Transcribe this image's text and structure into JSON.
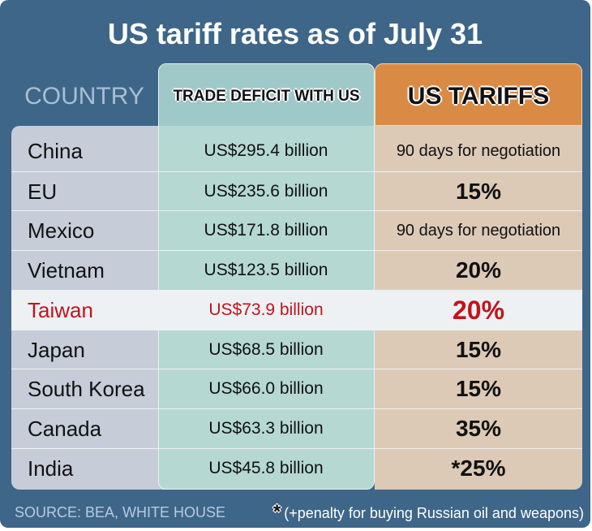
{
  "title": "US tariff rates as of July 31",
  "chart_data": {
    "type": "table",
    "title": "US tariff rates as of July 31",
    "columns": [
      "COUNTRY",
      "TRADE DEFICIT WITH US",
      "US TARIFFS"
    ],
    "rows": [
      {
        "country": "China",
        "deficit": "US$295.4 billion",
        "tariff": "90 days for negotiation"
      },
      {
        "country": "EU",
        "deficit": "US$235.6 billion",
        "tariff": "15%"
      },
      {
        "country": "Mexico",
        "deficit": "US$171.8 billion",
        "tariff": "90 days for negotiation"
      },
      {
        "country": "Vietnam",
        "deficit": "US$123.5 billion",
        "tariff": "20%"
      },
      {
        "country": "Taiwan",
        "deficit": "US$73.9 billion",
        "tariff": "20%",
        "highlight": true
      },
      {
        "country": "Japan",
        "deficit": "US$68.5 billion",
        "tariff": "15%"
      },
      {
        "country": "South Korea",
        "deficit": "US$66.0 billion",
        "tariff": "15%"
      },
      {
        "country": "Canada",
        "deficit": "US$63.3 billion",
        "tariff": "35%"
      },
      {
        "country": "India",
        "deficit": "US$45.8 billion",
        "tariff": "*25%"
      }
    ],
    "deficit_values_billion_usd": [
      295.4,
      235.6,
      171.8,
      123.5,
      73.9,
      68.5,
      66.0,
      63.3,
      45.8
    ]
  },
  "footer": {
    "source": "SOURCE: BEA, WHITE HOUSE",
    "note_symbol": "*",
    "note": "(+penalty for buying Russian oil and weapons)"
  },
  "colors": {
    "background": "#3e6688",
    "country_column": "#c6cdd9",
    "deficit_column": "#b5d8d2",
    "deficit_header": "#9fc8c8",
    "tariff_column": "#dccab7",
    "tariff_header": "#d98b46",
    "highlight_text": "#c0141b"
  }
}
